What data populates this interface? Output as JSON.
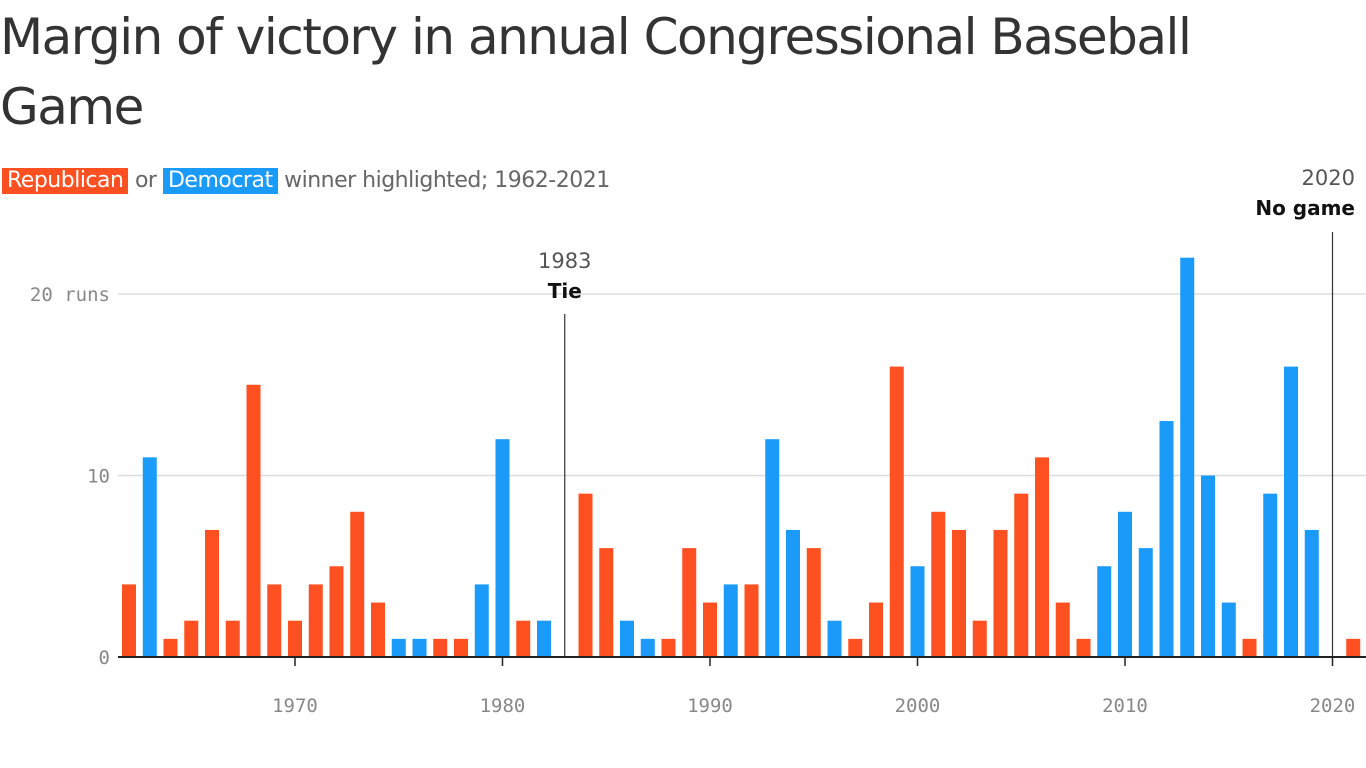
{
  "title": "Margin of victory in annual Congressional Baseball Game",
  "subtitle": {
    "republican": "Republican",
    "or": "or",
    "democrat": "Democrat",
    "rest": "winner highlighted; 1962-2021"
  },
  "colors": {
    "republican": "#ff5022",
    "democrat": "#1a9af9",
    "grid": "#dddddd",
    "axis": "#222222"
  },
  "chart_data": {
    "type": "bar",
    "title": "Margin of victory in annual Congressional Baseball Game",
    "xlim": [
      1962,
      2021
    ],
    "ylim": [
      0,
      22
    ],
    "y_ticks": [
      {
        "value": 0,
        "label": "0"
      },
      {
        "value": 10,
        "label": "10"
      },
      {
        "value": 20,
        "label": "20 runs"
      }
    ],
    "x_ticks": [
      1970,
      1980,
      1990,
      2000,
      2010,
      2020
    ],
    "grid": true,
    "data": [
      {
        "year": 1962,
        "margin": 4,
        "winner": "R"
      },
      {
        "year": 1963,
        "margin": 11,
        "winner": "D"
      },
      {
        "year": 1964,
        "margin": 1,
        "winner": "R"
      },
      {
        "year": 1965,
        "margin": 2,
        "winner": "R"
      },
      {
        "year": 1966,
        "margin": 7,
        "winner": "R"
      },
      {
        "year": 1967,
        "margin": 2,
        "winner": "R"
      },
      {
        "year": 1968,
        "margin": 15,
        "winner": "R"
      },
      {
        "year": 1969,
        "margin": 4,
        "winner": "R"
      },
      {
        "year": 1970,
        "margin": 2,
        "winner": "R"
      },
      {
        "year": 1971,
        "margin": 4,
        "winner": "R"
      },
      {
        "year": 1972,
        "margin": 5,
        "winner": "R"
      },
      {
        "year": 1973,
        "margin": 8,
        "winner": "R"
      },
      {
        "year": 1974,
        "margin": 3,
        "winner": "R"
      },
      {
        "year": 1975,
        "margin": 1,
        "winner": "D"
      },
      {
        "year": 1976,
        "margin": 1,
        "winner": "D"
      },
      {
        "year": 1977,
        "margin": 1,
        "winner": "R"
      },
      {
        "year": 1978,
        "margin": 1,
        "winner": "R"
      },
      {
        "year": 1979,
        "margin": 4,
        "winner": "D"
      },
      {
        "year": 1980,
        "margin": 12,
        "winner": "D"
      },
      {
        "year": 1981,
        "margin": 2,
        "winner": "R"
      },
      {
        "year": 1982,
        "margin": 2,
        "winner": "D"
      },
      {
        "year": 1984,
        "margin": 9,
        "winner": "R"
      },
      {
        "year": 1985,
        "margin": 6,
        "winner": "R"
      },
      {
        "year": 1986,
        "margin": 2,
        "winner": "D"
      },
      {
        "year": 1987,
        "margin": 1,
        "winner": "D"
      },
      {
        "year": 1988,
        "margin": 1,
        "winner": "R"
      },
      {
        "year": 1989,
        "margin": 6,
        "winner": "R"
      },
      {
        "year": 1990,
        "margin": 3,
        "winner": "R"
      },
      {
        "year": 1991,
        "margin": 4,
        "winner": "D"
      },
      {
        "year": 1992,
        "margin": 4,
        "winner": "R"
      },
      {
        "year": 1993,
        "margin": 12,
        "winner": "D"
      },
      {
        "year": 1994,
        "margin": 7,
        "winner": "D"
      },
      {
        "year": 1995,
        "margin": 6,
        "winner": "R"
      },
      {
        "year": 1996,
        "margin": 2,
        "winner": "D"
      },
      {
        "year": 1997,
        "margin": 1,
        "winner": "R"
      },
      {
        "year": 1998,
        "margin": 3,
        "winner": "R"
      },
      {
        "year": 1999,
        "margin": 16,
        "winner": "R"
      },
      {
        "year": 2000,
        "margin": 5,
        "winner": "D"
      },
      {
        "year": 2001,
        "margin": 8,
        "winner": "R"
      },
      {
        "year": 2002,
        "margin": 7,
        "winner": "R"
      },
      {
        "year": 2003,
        "margin": 2,
        "winner": "R"
      },
      {
        "year": 2004,
        "margin": 7,
        "winner": "R"
      },
      {
        "year": 2005,
        "margin": 9,
        "winner": "R"
      },
      {
        "year": 2006,
        "margin": 11,
        "winner": "R"
      },
      {
        "year": 2007,
        "margin": 3,
        "winner": "R"
      },
      {
        "year": 2008,
        "margin": 1,
        "winner": "R"
      },
      {
        "year": 2009,
        "margin": 5,
        "winner": "D"
      },
      {
        "year": 2010,
        "margin": 8,
        "winner": "D"
      },
      {
        "year": 2011,
        "margin": 6,
        "winner": "D"
      },
      {
        "year": 2012,
        "margin": 13,
        "winner": "D"
      },
      {
        "year": 2013,
        "margin": 22,
        "winner": "D"
      },
      {
        "year": 2014,
        "margin": 10,
        "winner": "D"
      },
      {
        "year": 2015,
        "margin": 3,
        "winner": "D"
      },
      {
        "year": 2016,
        "margin": 1,
        "winner": "R"
      },
      {
        "year": 2017,
        "margin": 9,
        "winner": "D"
      },
      {
        "year": 2018,
        "margin": 16,
        "winner": "D"
      },
      {
        "year": 2019,
        "margin": 7,
        "winner": "D"
      },
      {
        "year": 2021,
        "margin": 1,
        "winner": "R"
      }
    ],
    "annotations": [
      {
        "year": 1983,
        "year_label": "1983",
        "label": "Tie",
        "align": "center"
      },
      {
        "year": 2020,
        "year_label": "2020",
        "label": "No game",
        "align": "end"
      }
    ]
  }
}
